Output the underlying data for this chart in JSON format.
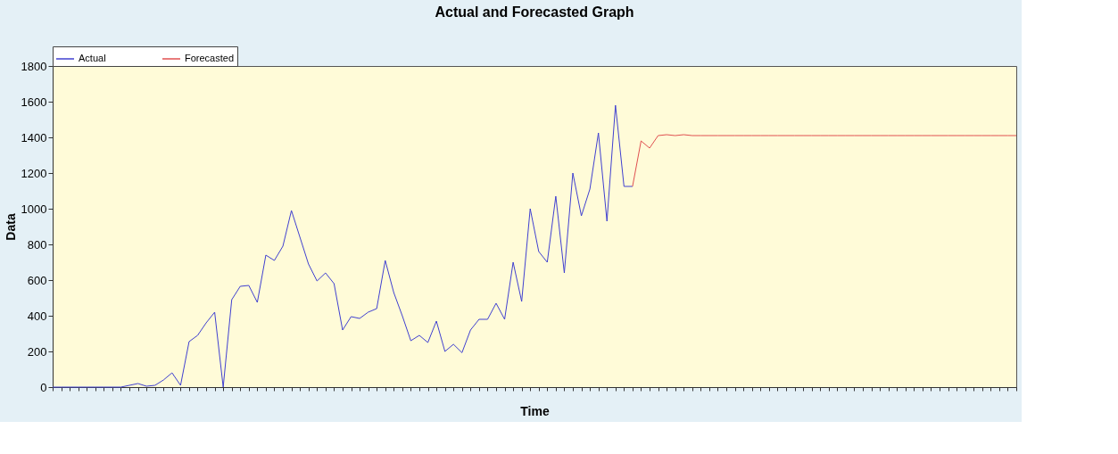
{
  "chart_data": {
    "type": "line",
    "title": "Actual and Forecasted Graph",
    "xlabel": "Time",
    "ylabel": "Data",
    "categories": [
      null,
      null,
      null,
      null,
      null,
      null,
      null,
      null,
      null,
      null,
      null,
      null,
      null,
      null,
      null,
      null,
      null,
      null,
      null,
      null,
      null,
      null,
      null,
      null,
      null,
      null,
      null,
      null,
      null,
      null,
      null,
      null,
      null,
      null,
      null,
      null,
      null,
      null,
      null,
      null,
      null,
      null,
      null,
      null,
      null,
      null,
      null,
      null,
      null,
      null,
      null,
      null,
      null,
      null,
      null,
      null,
      null,
      null,
      null,
      null,
      null,
      null,
      null,
      null,
      null,
      null,
      null,
      null,
      null,
      null,
      null,
      null,
      null,
      null,
      null,
      null,
      null,
      null,
      null,
      null,
      null,
      null,
      null,
      null,
      null,
      null,
      null,
      null,
      null,
      null,
      null,
      null,
      null,
      null,
      null,
      null,
      null,
      null,
      null,
      null,
      null,
      null,
      null,
      null,
      null,
      null,
      null,
      null,
      null,
      null,
      null,
      null,
      null,
      null
    ],
    "series": [
      {
        "name": "Actual",
        "color": "#4040d0",
        "values": [
          0,
          0,
          0,
          0,
          0,
          0,
          0,
          0,
          0,
          10,
          20,
          5,
          10,
          40,
          80,
          10,
          255,
          290,
          360,
          420,
          0,
          490,
          565,
          570,
          475,
          740,
          710,
          790,
          990,
          840,
          690,
          595,
          640,
          580,
          320,
          395,
          385,
          420,
          440,
          710,
          530,
          400,
          260,
          290,
          250,
          370,
          200,
          240,
          193,
          320,
          380,
          380,
          470,
          380,
          700,
          480,
          1000,
          760,
          700,
          1070,
          640,
          1200,
          960,
          1110,
          1425,
          930,
          1580,
          1125,
          1125,
          null,
          null,
          null,
          null,
          null,
          null,
          null,
          null,
          null,
          null,
          null,
          null,
          null,
          null,
          null,
          null,
          null,
          null,
          null,
          null,
          null,
          null,
          null,
          null,
          null,
          null,
          null,
          null,
          null,
          null,
          null,
          null,
          null,
          null,
          null,
          null,
          null,
          null,
          null,
          null,
          null,
          null,
          null,
          null,
          null
        ]
      },
      {
        "name": "Forecasted",
        "color": "#e05050",
        "values": [
          null,
          null,
          null,
          null,
          null,
          null,
          null,
          null,
          null,
          null,
          null,
          null,
          null,
          null,
          null,
          null,
          null,
          null,
          null,
          null,
          null,
          null,
          null,
          null,
          null,
          null,
          null,
          null,
          null,
          null,
          null,
          null,
          null,
          null,
          null,
          null,
          null,
          null,
          null,
          null,
          null,
          null,
          null,
          null,
          null,
          null,
          null,
          null,
          null,
          null,
          null,
          null,
          null,
          null,
          null,
          null,
          null,
          null,
          null,
          null,
          null,
          null,
          null,
          null,
          null,
          null,
          null,
          null,
          1125,
          1380,
          1340,
          1410,
          1415,
          1410,
          1415,
          1410,
          1410,
          1410,
          1410,
          1410,
          1410,
          1410,
          1410,
          1410,
          1410,
          1410,
          1410,
          1410,
          1410,
          1410,
          1410,
          1410,
          1410,
          1410,
          1410,
          1410,
          1410,
          1410,
          1410,
          1410,
          1410,
          1410,
          1410,
          1410,
          1410,
          1410,
          1410,
          1410,
          1410,
          1410,
          1410,
          1410,
          1410,
          1410
        ]
      }
    ],
    "ylim": [
      0,
      1800
    ],
    "yticks": [
      0,
      200,
      400,
      600,
      800,
      1000,
      1200,
      1400,
      1600,
      1800
    ],
    "grid": false,
    "legend": "top left",
    "marker": "none",
    "line_style": "solid"
  }
}
